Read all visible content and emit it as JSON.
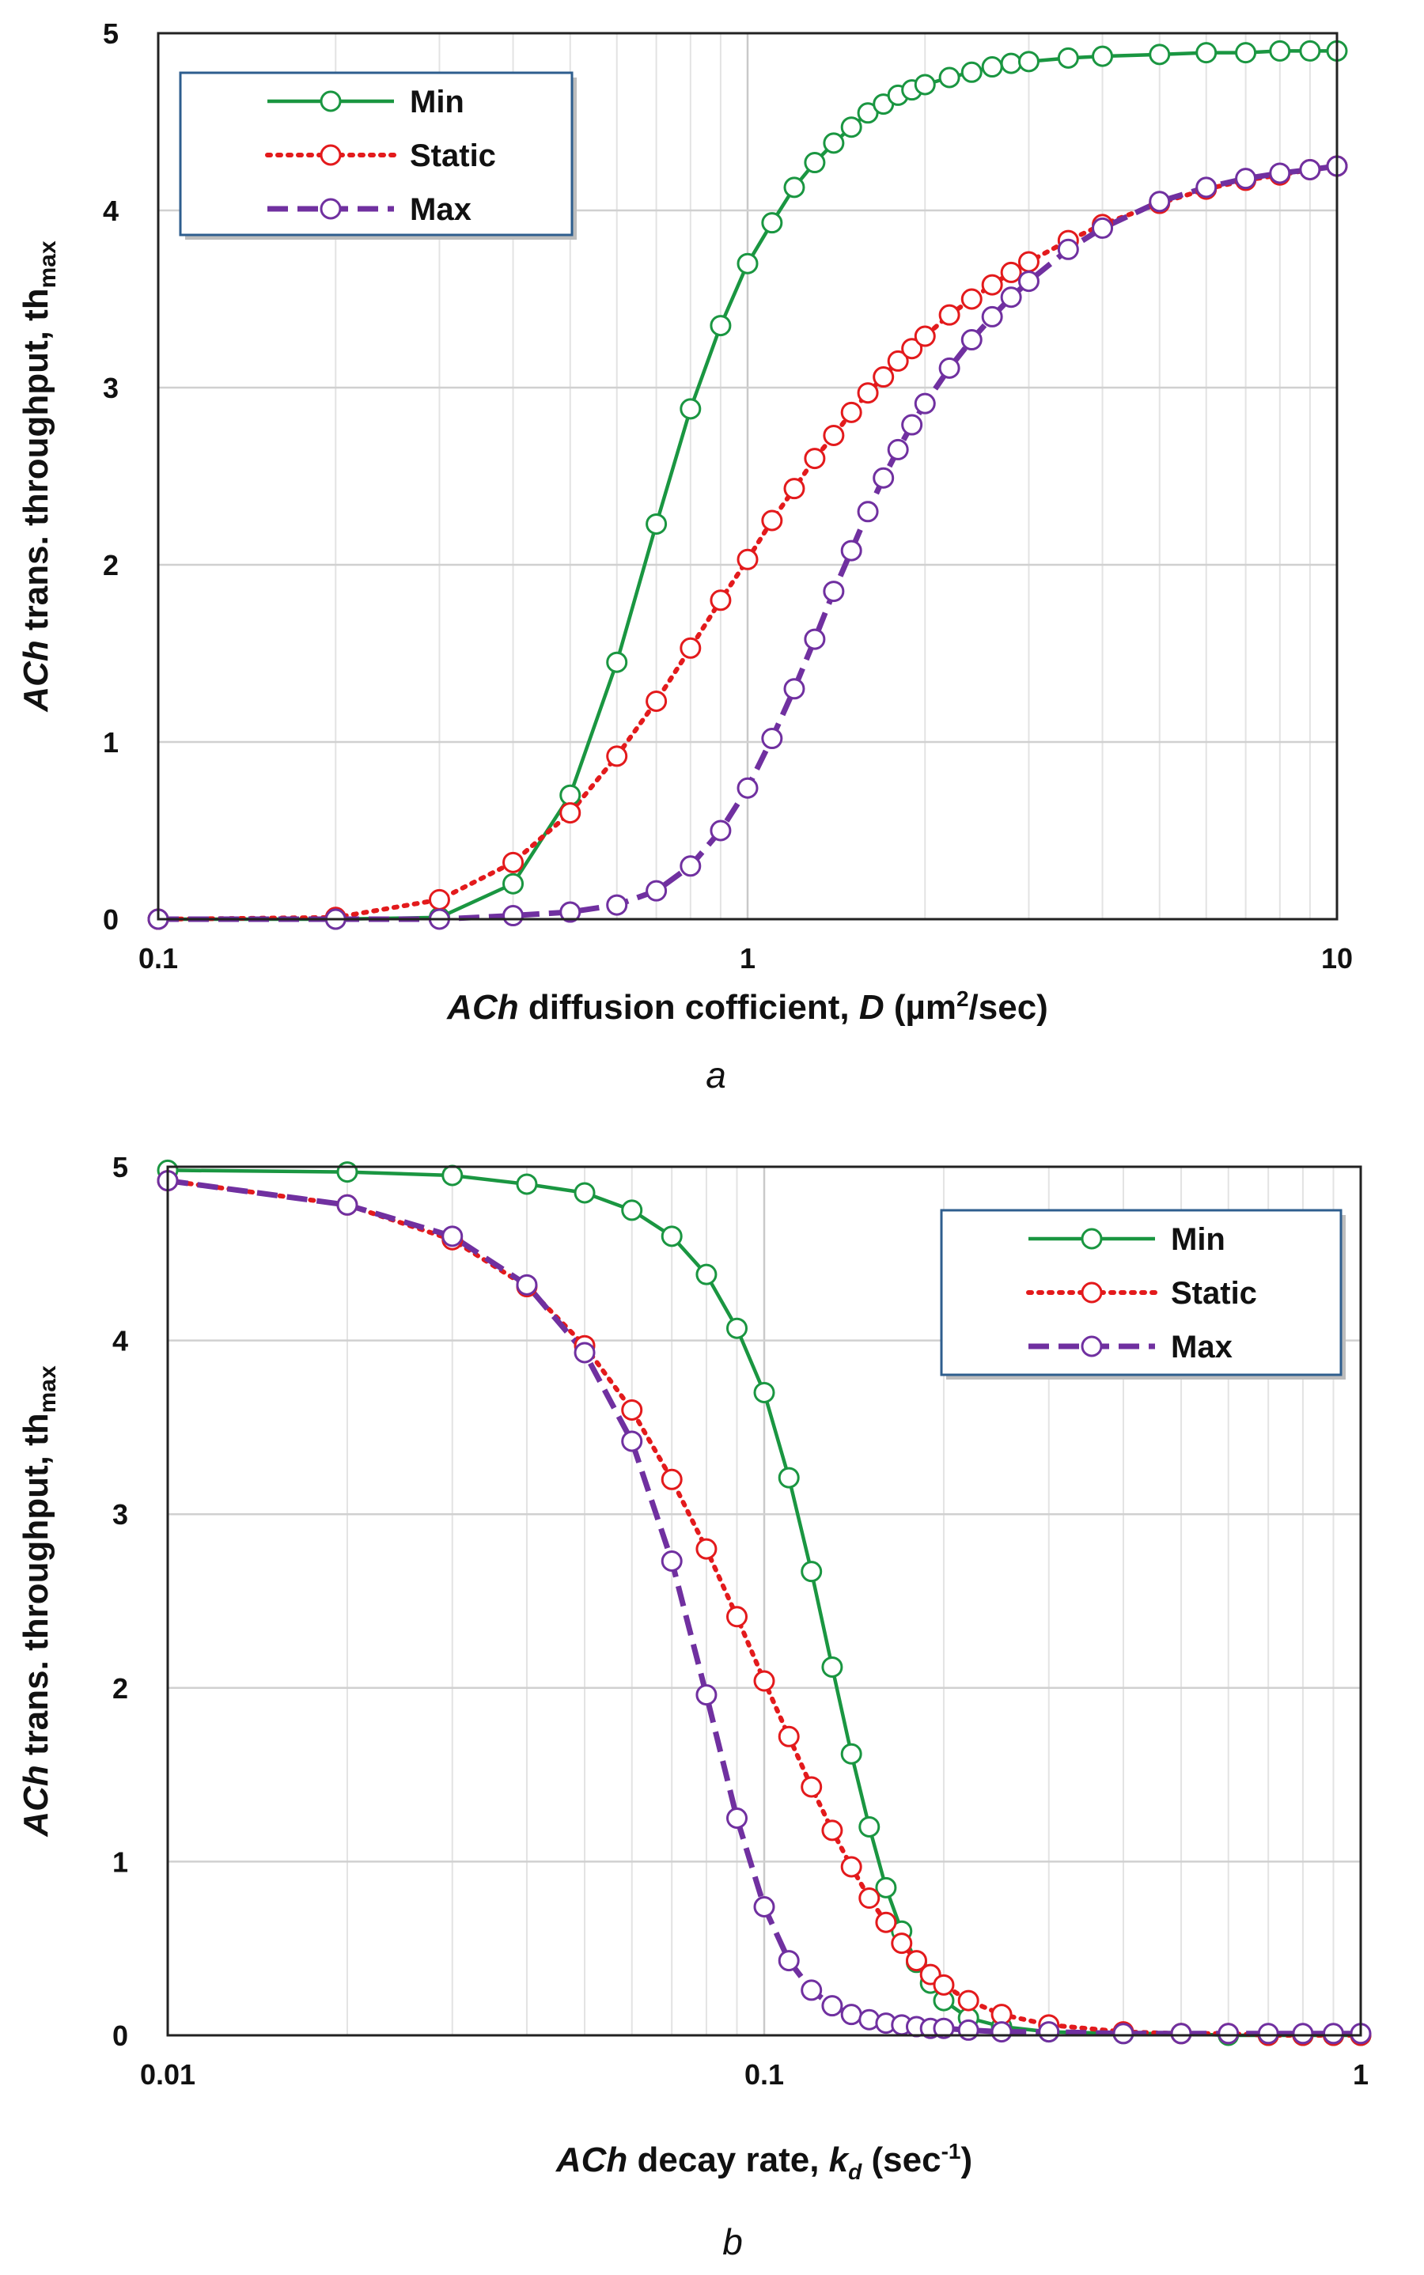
{
  "chart_data": [
    {
      "type": "line",
      "panel_label": "a",
      "xscale": "log",
      "xlim": [
        0.1,
        10
      ],
      "ylim": [
        0,
        5
      ],
      "xticks": [
        "0.1",
        "1",
        "10"
      ],
      "yticks": [
        "0",
        "1",
        "2",
        "3",
        "4",
        "5"
      ],
      "xlabel": {
        "italic": "ACh",
        "text": " diffusion cofficient, ",
        "var": "D",
        "unit_pre": " (µm",
        "sup": "2",
        "unit_post": "/sec)"
      },
      "ylabel": {
        "italic": "ACh",
        "text": " trans. throughput, th",
        "sub": "max"
      },
      "legend_position": "top-left",
      "series": [
        {
          "name": "Min",
          "color": "#1a9641",
          "style": "solid",
          "x": [
            0.1,
            0.2,
            0.3,
            0.4,
            0.5,
            0.6,
            0.7,
            0.8,
            0.9,
            1.0,
            1.1,
            1.2,
            1.3,
            1.4,
            1.5,
            1.6,
            1.7,
            1.8,
            1.9,
            2.0,
            2.2,
            2.4,
            2.6,
            2.8,
            3.0,
            3.5,
            4.0,
            5.0,
            6.0,
            7.0,
            8.0,
            9.0,
            10.0
          ],
          "y": [
            0.0,
            0.0,
            0.01,
            0.2,
            0.7,
            1.45,
            2.23,
            2.88,
            3.35,
            3.7,
            3.93,
            4.13,
            4.27,
            4.38,
            4.47,
            4.55,
            4.6,
            4.65,
            4.68,
            4.71,
            4.75,
            4.78,
            4.81,
            4.83,
            4.84,
            4.86,
            4.87,
            4.88,
            4.89,
            4.89,
            4.9,
            4.9,
            4.9
          ]
        },
        {
          "name": "Static",
          "color": "#e31a1c",
          "style": "dotted",
          "x": [
            0.1,
            0.2,
            0.3,
            0.4,
            0.5,
            0.6,
            0.7,
            0.8,
            0.9,
            1.0,
            1.1,
            1.2,
            1.3,
            1.4,
            1.5,
            1.6,
            1.7,
            1.8,
            1.9,
            2.0,
            2.2,
            2.4,
            2.6,
            2.8,
            3.0,
            3.5,
            4.0,
            5.0,
            6.0,
            7.0,
            8.0,
            9.0,
            10.0
          ],
          "y": [
            0.0,
            0.01,
            0.11,
            0.32,
            0.6,
            0.92,
            1.23,
            1.53,
            1.8,
            2.03,
            2.25,
            2.43,
            2.6,
            2.73,
            2.86,
            2.97,
            3.06,
            3.15,
            3.22,
            3.29,
            3.41,
            3.5,
            3.58,
            3.65,
            3.71,
            3.83,
            3.92,
            4.04,
            4.12,
            4.17,
            4.2,
            4.23,
            4.25
          ]
        },
        {
          "name": "Max",
          "color": "#7030a0",
          "style": "dashed",
          "x": [
            0.1,
            0.2,
            0.3,
            0.4,
            0.5,
            0.6,
            0.7,
            0.8,
            0.9,
            1.0,
            1.1,
            1.2,
            1.3,
            1.4,
            1.5,
            1.6,
            1.7,
            1.8,
            1.9,
            2.0,
            2.2,
            2.4,
            2.6,
            2.8,
            3.0,
            3.5,
            4.0,
            5.0,
            6.0,
            7.0,
            8.0,
            9.0,
            10.0
          ],
          "y": [
            0.0,
            0.0,
            0.0,
            0.02,
            0.04,
            0.08,
            0.16,
            0.3,
            0.5,
            0.74,
            1.02,
            1.3,
            1.58,
            1.85,
            2.08,
            2.3,
            2.49,
            2.65,
            2.79,
            2.91,
            3.11,
            3.27,
            3.4,
            3.51,
            3.6,
            3.78,
            3.9,
            4.05,
            4.13,
            4.18,
            4.21,
            4.23,
            4.25
          ]
        }
      ]
    },
    {
      "type": "line",
      "panel_label": "b",
      "xscale": "log",
      "xlim": [
        0.01,
        1
      ],
      "ylim": [
        0,
        5
      ],
      "xticks": [
        "0.01",
        "0.1",
        "1"
      ],
      "yticks": [
        "0",
        "1",
        "2",
        "3",
        "4",
        "5"
      ],
      "xlabel": {
        "italic": "ACh",
        "text": " decay rate, ",
        "var": "k",
        "var_sub": "d",
        "unit_pre": " (sec",
        "sup": "-1",
        "unit_post": ")"
      },
      "ylabel": {
        "italic": "ACh",
        "text": " trans. throughput, th",
        "sub": "max"
      },
      "legend_position": "top-right",
      "series": [
        {
          "name": "Min",
          "color": "#1a9641",
          "style": "solid",
          "x": [
            0.01,
            0.02,
            0.03,
            0.04,
            0.05,
            0.06,
            0.07,
            0.08,
            0.09,
            0.1,
            0.11,
            0.12,
            0.13,
            0.14,
            0.15,
            0.16,
            0.17,
            0.18,
            0.19,
            0.2,
            0.22,
            0.25,
            0.3,
            0.4,
            0.5,
            0.6,
            0.7,
            0.8,
            0.9,
            1.0
          ],
          "y": [
            4.98,
            4.97,
            4.95,
            4.9,
            4.85,
            4.75,
            4.6,
            4.38,
            4.07,
            3.7,
            3.21,
            2.67,
            2.12,
            1.62,
            1.2,
            0.85,
            0.6,
            0.42,
            0.3,
            0.2,
            0.1,
            0.05,
            0.02,
            0.01,
            0.01,
            0.0,
            0.0,
            0.0,
            0.0,
            0.0
          ]
        },
        {
          "name": "Static",
          "color": "#e31a1c",
          "style": "dotted",
          "x": [
            0.01,
            0.02,
            0.03,
            0.04,
            0.05,
            0.06,
            0.07,
            0.08,
            0.09,
            0.1,
            0.11,
            0.12,
            0.13,
            0.14,
            0.15,
            0.16,
            0.17,
            0.18,
            0.19,
            0.2,
            0.22,
            0.25,
            0.3,
            0.4,
            0.5,
            0.6,
            0.7,
            0.8,
            0.9,
            1.0
          ],
          "y": [
            4.92,
            4.78,
            4.58,
            4.31,
            3.97,
            3.6,
            3.2,
            2.8,
            2.41,
            2.04,
            1.72,
            1.43,
            1.18,
            0.97,
            0.79,
            0.65,
            0.53,
            0.43,
            0.35,
            0.29,
            0.2,
            0.12,
            0.06,
            0.02,
            0.01,
            0.01,
            0.0,
            0.0,
            0.0,
            0.0
          ]
        },
        {
          "name": "Max",
          "color": "#7030a0",
          "style": "dashed",
          "x": [
            0.01,
            0.02,
            0.03,
            0.04,
            0.05,
            0.06,
            0.07,
            0.08,
            0.09,
            0.1,
            0.11,
            0.12,
            0.13,
            0.14,
            0.15,
            0.16,
            0.17,
            0.18,
            0.19,
            0.2,
            0.22,
            0.25,
            0.3,
            0.4,
            0.5,
            0.6,
            0.7,
            0.8,
            0.9,
            1.0
          ],
          "y": [
            4.92,
            4.78,
            4.6,
            4.32,
            3.93,
            3.42,
            2.73,
            1.96,
            1.25,
            0.74,
            0.43,
            0.26,
            0.17,
            0.12,
            0.09,
            0.07,
            0.06,
            0.05,
            0.04,
            0.04,
            0.03,
            0.02,
            0.02,
            0.01,
            0.01,
            0.01,
            0.01,
            0.01,
            0.01,
            0.01
          ]
        }
      ]
    }
  ]
}
